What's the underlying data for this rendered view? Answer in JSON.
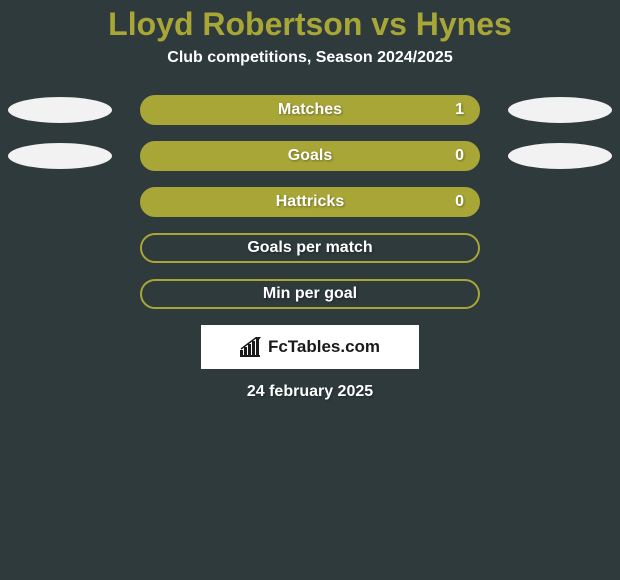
{
  "background_color": "#2f3a3d",
  "title": {
    "text": "Lloyd Robertson vs Hynes",
    "color": "#a8a637",
    "fontsize": 32
  },
  "subtitle": {
    "text": "Club competitions, Season 2024/2025",
    "color": "#ffffff",
    "fontsize": 16
  },
  "bar_style": {
    "fill_color": "#a8a637",
    "border_color": "#a8a637",
    "label_color": "#ffffff",
    "label_fontsize": 16,
    "value_color": "#ffffff",
    "background_fill": "transparent"
  },
  "ellipse_color": "#f2f2f2",
  "rows": [
    {
      "label": "Matches",
      "value_right": "1",
      "filled": true,
      "left_ellipse": true,
      "right_ellipse": true
    },
    {
      "label": "Goals",
      "value_right": "0",
      "filled": true,
      "left_ellipse": true,
      "right_ellipse": true
    },
    {
      "label": "Hattricks",
      "value_right": "0",
      "filled": true,
      "left_ellipse": false,
      "right_ellipse": false
    },
    {
      "label": "Goals per match",
      "value_right": "",
      "filled": false,
      "left_ellipse": false,
      "right_ellipse": false
    },
    {
      "label": "Min per goal",
      "value_right": "",
      "filled": false,
      "left_ellipse": false,
      "right_ellipse": false
    }
  ],
  "logo": {
    "box_bg": "#ffffff",
    "text": "FcTables.com",
    "text_color": "#1a1a1a",
    "fontsize": 17,
    "icon_color": "#1a1a1a"
  },
  "date": {
    "text": "24 february 2025",
    "color": "#ffffff",
    "fontsize": 16
  }
}
